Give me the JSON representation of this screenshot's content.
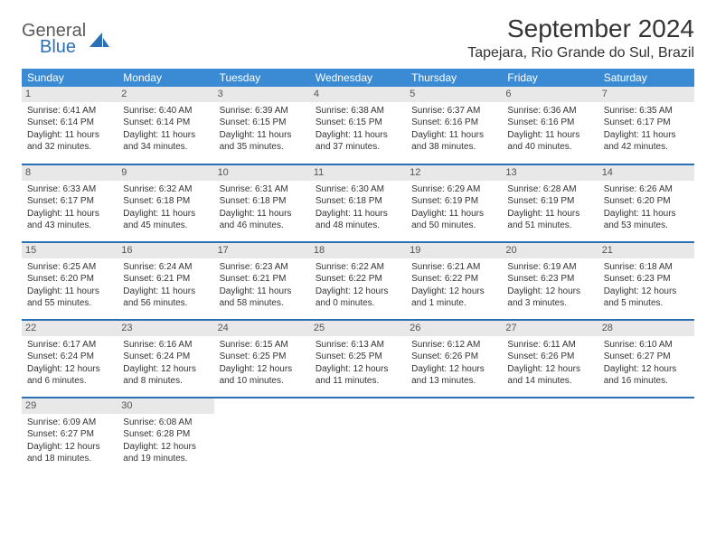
{
  "logo": {
    "general": "General",
    "blue": "Blue"
  },
  "title": "September 2024",
  "location": "Tapejara, Rio Grande do Sul, Brazil",
  "header_bg": "#3b8bd4",
  "border_color": "#2b6fb5",
  "daynum_bg": "#e8e8e8",
  "text_color": "#333333",
  "weekdays": [
    "Sunday",
    "Monday",
    "Tuesday",
    "Wednesday",
    "Thursday",
    "Friday",
    "Saturday"
  ],
  "weeks": [
    [
      {
        "n": "1",
        "sr": "Sunrise: 6:41 AM",
        "ss": "Sunset: 6:14 PM",
        "dl": "Daylight: 11 hours and 32 minutes."
      },
      {
        "n": "2",
        "sr": "Sunrise: 6:40 AM",
        "ss": "Sunset: 6:14 PM",
        "dl": "Daylight: 11 hours and 34 minutes."
      },
      {
        "n": "3",
        "sr": "Sunrise: 6:39 AM",
        "ss": "Sunset: 6:15 PM",
        "dl": "Daylight: 11 hours and 35 minutes."
      },
      {
        "n": "4",
        "sr": "Sunrise: 6:38 AM",
        "ss": "Sunset: 6:15 PM",
        "dl": "Daylight: 11 hours and 37 minutes."
      },
      {
        "n": "5",
        "sr": "Sunrise: 6:37 AM",
        "ss": "Sunset: 6:16 PM",
        "dl": "Daylight: 11 hours and 38 minutes."
      },
      {
        "n": "6",
        "sr": "Sunrise: 6:36 AM",
        "ss": "Sunset: 6:16 PM",
        "dl": "Daylight: 11 hours and 40 minutes."
      },
      {
        "n": "7",
        "sr": "Sunrise: 6:35 AM",
        "ss": "Sunset: 6:17 PM",
        "dl": "Daylight: 11 hours and 42 minutes."
      }
    ],
    [
      {
        "n": "8",
        "sr": "Sunrise: 6:33 AM",
        "ss": "Sunset: 6:17 PM",
        "dl": "Daylight: 11 hours and 43 minutes."
      },
      {
        "n": "9",
        "sr": "Sunrise: 6:32 AM",
        "ss": "Sunset: 6:18 PM",
        "dl": "Daylight: 11 hours and 45 minutes."
      },
      {
        "n": "10",
        "sr": "Sunrise: 6:31 AM",
        "ss": "Sunset: 6:18 PM",
        "dl": "Daylight: 11 hours and 46 minutes."
      },
      {
        "n": "11",
        "sr": "Sunrise: 6:30 AM",
        "ss": "Sunset: 6:18 PM",
        "dl": "Daylight: 11 hours and 48 minutes."
      },
      {
        "n": "12",
        "sr": "Sunrise: 6:29 AM",
        "ss": "Sunset: 6:19 PM",
        "dl": "Daylight: 11 hours and 50 minutes."
      },
      {
        "n": "13",
        "sr": "Sunrise: 6:28 AM",
        "ss": "Sunset: 6:19 PM",
        "dl": "Daylight: 11 hours and 51 minutes."
      },
      {
        "n": "14",
        "sr": "Sunrise: 6:26 AM",
        "ss": "Sunset: 6:20 PM",
        "dl": "Daylight: 11 hours and 53 minutes."
      }
    ],
    [
      {
        "n": "15",
        "sr": "Sunrise: 6:25 AM",
        "ss": "Sunset: 6:20 PM",
        "dl": "Daylight: 11 hours and 55 minutes."
      },
      {
        "n": "16",
        "sr": "Sunrise: 6:24 AM",
        "ss": "Sunset: 6:21 PM",
        "dl": "Daylight: 11 hours and 56 minutes."
      },
      {
        "n": "17",
        "sr": "Sunrise: 6:23 AM",
        "ss": "Sunset: 6:21 PM",
        "dl": "Daylight: 11 hours and 58 minutes."
      },
      {
        "n": "18",
        "sr": "Sunrise: 6:22 AM",
        "ss": "Sunset: 6:22 PM",
        "dl": "Daylight: 12 hours and 0 minutes."
      },
      {
        "n": "19",
        "sr": "Sunrise: 6:21 AM",
        "ss": "Sunset: 6:22 PM",
        "dl": "Daylight: 12 hours and 1 minute."
      },
      {
        "n": "20",
        "sr": "Sunrise: 6:19 AM",
        "ss": "Sunset: 6:23 PM",
        "dl": "Daylight: 12 hours and 3 minutes."
      },
      {
        "n": "21",
        "sr": "Sunrise: 6:18 AM",
        "ss": "Sunset: 6:23 PM",
        "dl": "Daylight: 12 hours and 5 minutes."
      }
    ],
    [
      {
        "n": "22",
        "sr": "Sunrise: 6:17 AM",
        "ss": "Sunset: 6:24 PM",
        "dl": "Daylight: 12 hours and 6 minutes."
      },
      {
        "n": "23",
        "sr": "Sunrise: 6:16 AM",
        "ss": "Sunset: 6:24 PM",
        "dl": "Daylight: 12 hours and 8 minutes."
      },
      {
        "n": "24",
        "sr": "Sunrise: 6:15 AM",
        "ss": "Sunset: 6:25 PM",
        "dl": "Daylight: 12 hours and 10 minutes."
      },
      {
        "n": "25",
        "sr": "Sunrise: 6:13 AM",
        "ss": "Sunset: 6:25 PM",
        "dl": "Daylight: 12 hours and 11 minutes."
      },
      {
        "n": "26",
        "sr": "Sunrise: 6:12 AM",
        "ss": "Sunset: 6:26 PM",
        "dl": "Daylight: 12 hours and 13 minutes."
      },
      {
        "n": "27",
        "sr": "Sunrise: 6:11 AM",
        "ss": "Sunset: 6:26 PM",
        "dl": "Daylight: 12 hours and 14 minutes."
      },
      {
        "n": "28",
        "sr": "Sunrise: 6:10 AM",
        "ss": "Sunset: 6:27 PM",
        "dl": "Daylight: 12 hours and 16 minutes."
      }
    ],
    [
      {
        "n": "29",
        "sr": "Sunrise: 6:09 AM",
        "ss": "Sunset: 6:27 PM",
        "dl": "Daylight: 12 hours and 18 minutes."
      },
      {
        "n": "30",
        "sr": "Sunrise: 6:08 AM",
        "ss": "Sunset: 6:28 PM",
        "dl": "Daylight: 12 hours and 19 minutes."
      },
      null,
      null,
      null,
      null,
      null
    ]
  ]
}
